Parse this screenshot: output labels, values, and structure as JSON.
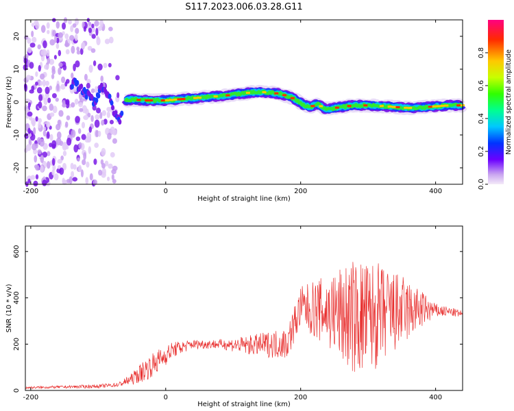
{
  "title": "S117.2023.006.03.28.G11",
  "chart_data": [
    {
      "type": "heatmap",
      "xlabel": "Height of straight line (km)",
      "ylabel": "Frequency (Hz)",
      "xlim": [
        -208,
        440
      ],
      "ylim": [
        -25,
        25
      ],
      "xticks": [
        "-200",
        "0",
        "200",
        "400"
      ],
      "yticks": [
        "-20",
        "-10",
        "0",
        "10",
        "20"
      ],
      "colorbar": {
        "label": "Normalized spectral amplitude",
        "range": [
          0,
          1
        ],
        "ticks": [
          "0.0",
          "0.2",
          "0.4",
          "0.6",
          "0.8"
        ],
        "colormap": "rainbow"
      },
      "ridge": {
        "x": [
          -205,
          -150,
          -135,
          -120,
          -105,
          -95,
          -85,
          -75,
          -68,
          -60,
          -50,
          -30,
          0,
          30,
          60,
          90,
          110,
          130,
          150,
          170,
          185,
          195,
          205,
          215,
          225,
          235,
          245,
          260,
          280,
          300,
          320,
          340,
          360,
          380,
          400,
          420,
          440
        ],
        "y": [
          0,
          4,
          6,
          3,
          0,
          5,
          2,
          -4,
          -6,
          0.5,
          0.8,
          0.5,
          0.5,
          1,
          1.5,
          2,
          2.5,
          3,
          3,
          2.5,
          1.5,
          0.5,
          -1,
          -1.5,
          -0.5,
          -2,
          -2,
          -1.5,
          -1,
          -1,
          -1.2,
          -1.5,
          -1.8,
          -1.6,
          -1.3,
          -1,
          -1
        ]
      },
      "noise_region_x": [
        -208,
        -70
      ]
    },
    {
      "type": "line",
      "xlabel": "Height of straight line (km)",
      "ylabel": "SNR (10 * v/v)",
      "xlim": [
        -208,
        440
      ],
      "ylim": [
        0,
        710
      ],
      "xticks": [
        "-200",
        "0",
        "200",
        "400"
      ],
      "yticks": [
        "0",
        "200",
        "400",
        "600"
      ],
      "color": "#e8302f",
      "envelope": {
        "x": [
          -208,
          -150,
          -100,
          -70,
          -50,
          -30,
          -10,
          10,
          40,
          80,
          120,
          160,
          180,
          200,
          240,
          270,
          290,
          310,
          330,
          350,
          380,
          400,
          420,
          440
        ],
        "base": [
          12,
          15,
          18,
          25,
          50,
          90,
          130,
          175,
          200,
          200,
          195,
          200,
          205,
          360,
          340,
          320,
          310,
          320,
          330,
          340,
          350,
          345,
          340,
          330
        ],
        "amp": [
          5,
          6,
          8,
          10,
          25,
          50,
          50,
          35,
          20,
          20,
          40,
          60,
          70,
          90,
          160,
          240,
          260,
          240,
          200,
          160,
          80,
          30,
          20,
          15
        ]
      }
    }
  ]
}
